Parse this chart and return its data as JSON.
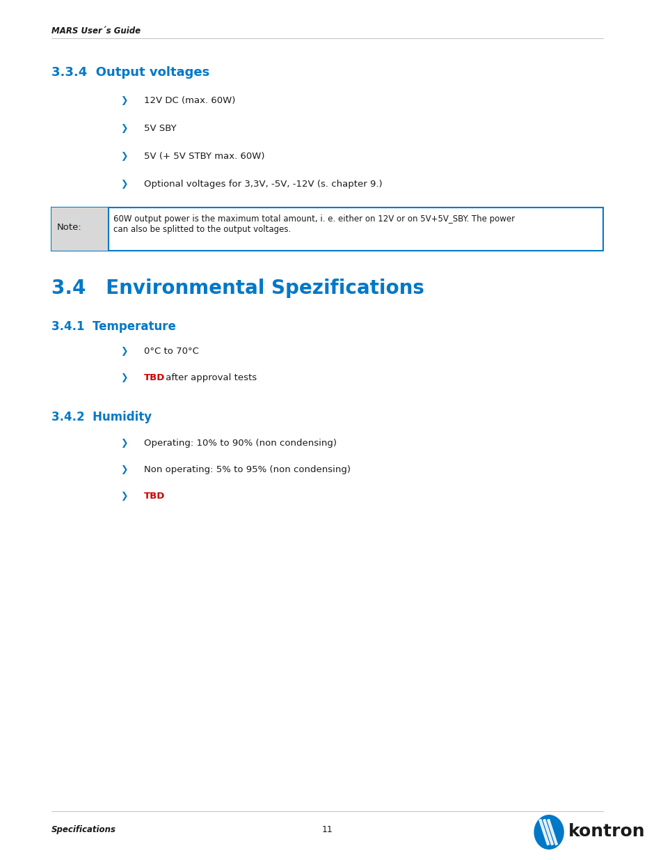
{
  "page_bg": "#ffffff",
  "header_text": "MARS User´s Guide",
  "header_italic": true,
  "header_bold": true,
  "footer_left": "Specifications",
  "footer_page": "11",
  "section334_title": "3.3.4  Output voltages",
  "section334_color": "#0078c8",
  "bullets_334": [
    "12V DC (max. 60W)",
    "5V SBY",
    "5V (+ 5V STBY max. 60W)",
    "Optional voltages for 3,3V, -5V, -12V (s. chapter 9.)"
  ],
  "note_label": "Note:",
  "note_text": "60W output power is the maximum total amount, i. e. either on 12V or on 5V+5V_SBY. The power\ncan also be splitted to the output voltages.",
  "note_border_color": "#0078c8",
  "note_bg": "#e8e8e8",
  "section34_title": "3.4   Environmental Spezifications",
  "section34_color": "#0078c8",
  "section341_title": "3.4.1  Temperature",
  "section341_color": "#0078c8",
  "bullets_341": [
    {
      "text": "0°C to 70°C",
      "color": "#1a1a1a",
      "tbd": false
    },
    {
      "text": " after approval tests",
      "color": "#1a1a1a",
      "tbd": true
    }
  ],
  "section342_title": "3.4.2  Humidity",
  "section342_color": "#0078c8",
  "bullets_342": [
    {
      "text": "Operating: 10% to 90% (non condensing)",
      "color": "#1a1a1a",
      "tbd": false
    },
    {
      "text": "Non operating: 5% to 95% (non condensing)",
      "color": "#1a1a1a",
      "tbd": false
    },
    {
      "text": "",
      "color": "#1a1a1a",
      "tbd": true,
      "tbd_only": true
    }
  ],
  "bullet_color": "#0078c8",
  "tbd_color": "#cc0000",
  "text_color": "#1a1a1a",
  "bullet_char": "❯",
  "font_family": "DejaVu Sans"
}
